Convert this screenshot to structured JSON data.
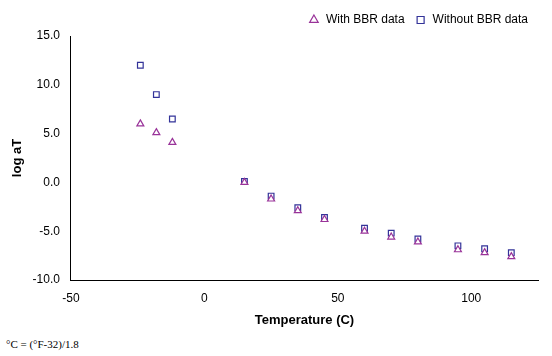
{
  "chart_data": {
    "type": "scatter",
    "x_label": "Temperature (C)",
    "y_label": "log aT",
    "annotations": [
      "°C = (°F-32)/1.8"
    ],
    "xlim": [
      -50,
      125
    ],
    "xticks": [
      -50,
      0,
      50,
      100
    ],
    "ylim": [
      -10,
      15
    ],
    "yticks": [
      {
        "value": -10,
        "label": "-10.0"
      },
      {
        "value": -5,
        "label": "-5.0"
      },
      {
        "value": 0,
        "label": "0.0"
      },
      {
        "value": 5,
        "label": "5.0"
      },
      {
        "value": 10,
        "label": "10.0"
      },
      {
        "value": 15,
        "label": "15.0"
      }
    ],
    "grid": false,
    "legend": "upper right",
    "series": [
      {
        "name": "With BBR data",
        "color": "#993399",
        "marker": "triangle",
        "x": [
          -24,
          -18,
          -12,
          15,
          25,
          35,
          45,
          60,
          70,
          80,
          95,
          105,
          115
        ],
        "values": [
          6.0,
          5.1,
          4.1,
          0.0,
          -1.7,
          -2.9,
          -3.8,
          -5.0,
          -5.6,
          -6.1,
          -6.9,
          -7.2,
          -7.6
        ]
      },
      {
        "name": "Without BBR data",
        "color": "#333399",
        "marker": "square",
        "x": [
          -24,
          -18,
          -12,
          15,
          25,
          35,
          45,
          60,
          70,
          80,
          95,
          105,
          115
        ],
        "values": [
          12.0,
          9.0,
          6.5,
          0.1,
          -1.4,
          -2.6,
          -3.6,
          -4.7,
          -5.2,
          -5.8,
          -6.5,
          -6.8,
          -7.2
        ]
      }
    ]
  }
}
